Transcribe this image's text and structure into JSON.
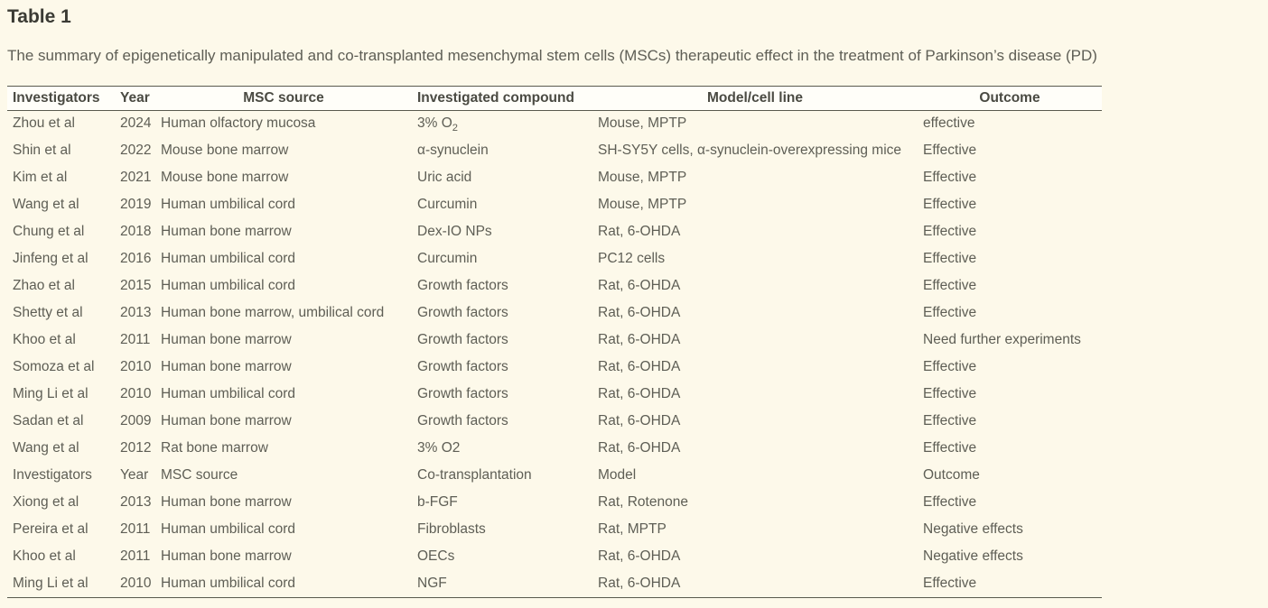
{
  "page": {
    "title": "Table 1",
    "caption": "The summary of epigenetically manipulated and co-transplanted mesenchymal stem cells (MSCs) therapeutic effect in the treatment of Parkinson’s disease (PD)"
  },
  "colors": {
    "page_background": "#fdf9ea",
    "header_background": "#fffef9",
    "border": "#5a5a4e",
    "body_text": "#5e5e55",
    "header_text": "#4a4a42",
    "title_text": "#3b3b34"
  },
  "table": {
    "columns": [
      {
        "key": "investigators",
        "label": "Investigators"
      },
      {
        "key": "year",
        "label": "Year"
      },
      {
        "key": "msc_source",
        "label": "MSC source"
      },
      {
        "key": "compound",
        "label": "Investigated compound"
      },
      {
        "key": "model",
        "label": "Model/cell line"
      },
      {
        "key": "outcome",
        "label": "Outcome"
      }
    ],
    "rows": [
      {
        "investigators": "Zhou et al",
        "year": "2024",
        "msc_source": "Human olfactory mucosa",
        "compound": "3% O",
        "compound_sub": "2",
        "model": "Mouse, MPTP",
        "outcome": "effective"
      },
      {
        "investigators": "Shin et al",
        "year": "2022",
        "msc_source": "Mouse bone marrow",
        "compound": "α-synuclein",
        "model": "SH-SY5Y cells, α-synuclein-overexpressing mice",
        "outcome": "Effective"
      },
      {
        "investigators": "Kim et al",
        "year": "2021",
        "msc_source": "Mouse bone marrow",
        "compound": "Uric acid",
        "model": "Mouse, MPTP",
        "outcome": "Effective"
      },
      {
        "investigators": "Wang et al",
        "year": "2019",
        "msc_source": "Human umbilical cord",
        "compound": "Curcumin",
        "model": "Mouse, MPTP",
        "outcome": "Effective"
      },
      {
        "investigators": "Chung et al",
        "year": "2018",
        "msc_source": "Human bone marrow",
        "compound": "Dex-IO NPs",
        "model": "Rat, 6-OHDA",
        "outcome": "Effective"
      },
      {
        "investigators": "Jinfeng et al",
        "year": "2016",
        "msc_source": "Human umbilical cord",
        "compound": "Curcumin",
        "model": "PC12 cells",
        "outcome": "Effective"
      },
      {
        "investigators": "Zhao et al",
        "year": "2015",
        "msc_source": "Human umbilical cord",
        "compound": "Growth factors",
        "model": "Rat, 6-OHDA",
        "outcome": "Effective"
      },
      {
        "investigators": "Shetty et al",
        "year": "2013",
        "msc_source": "Human bone marrow, umbilical cord",
        "compound": "Growth factors",
        "model": "Rat, 6-OHDA",
        "outcome": "Effective"
      },
      {
        "investigators": "Khoo et al",
        "year": "2011",
        "msc_source": "Human bone marrow",
        "compound": "Growth factors",
        "model": "Rat, 6-OHDA",
        "outcome": "Need further experiments"
      },
      {
        "investigators": "Somoza et al",
        "year": "2010",
        "msc_source": "Human bone marrow",
        "compound": "Growth factors",
        "model": "Rat, 6-OHDA",
        "outcome": "Effective"
      },
      {
        "investigators": "Ming Li et al",
        "year": "2010",
        "msc_source": "Human umbilical cord",
        "compound": "Growth factors",
        "model": "Rat, 6-OHDA",
        "outcome": "Effective"
      },
      {
        "investigators": "Sadan et al",
        "year": "2009",
        "msc_source": "Human bone marrow",
        "compound": "Growth factors",
        "model": "Rat, 6-OHDA",
        "outcome": "Effective"
      },
      {
        "investigators": "Wang et al",
        "year": "2012",
        "msc_source": "Rat bone marrow",
        "compound": "3% O2",
        "model": "Rat, 6-OHDA",
        "outcome": "Effective"
      },
      {
        "section_header": true,
        "investigators": "Investigators",
        "year": "Year",
        "msc_source": "MSC source",
        "compound": "Co-transplantation",
        "model": "Model",
        "outcome": "Outcome"
      },
      {
        "investigators": "Xiong et al",
        "year": "2013",
        "msc_source": "Human bone marrow",
        "compound": "b-FGF",
        "model": "Rat, Rotenone",
        "outcome": "Effective"
      },
      {
        "investigators": "Pereira et al",
        "year": "2011",
        "msc_source": "Human umbilical cord",
        "compound": "Fibroblasts",
        "model": "Rat, MPTP",
        "outcome": "Negative effects"
      },
      {
        "investigators": "Khoo et al",
        "year": "2011",
        "msc_source": "Human bone marrow",
        "compound": "OECs",
        "model": "Rat, 6-OHDA",
        "outcome": "Negative effects"
      },
      {
        "investigators": "Ming Li et al",
        "year": "2010",
        "msc_source": "Human umbilical cord",
        "compound": "NGF",
        "model": "Rat, 6-OHDA",
        "outcome": "Effective"
      }
    ]
  }
}
